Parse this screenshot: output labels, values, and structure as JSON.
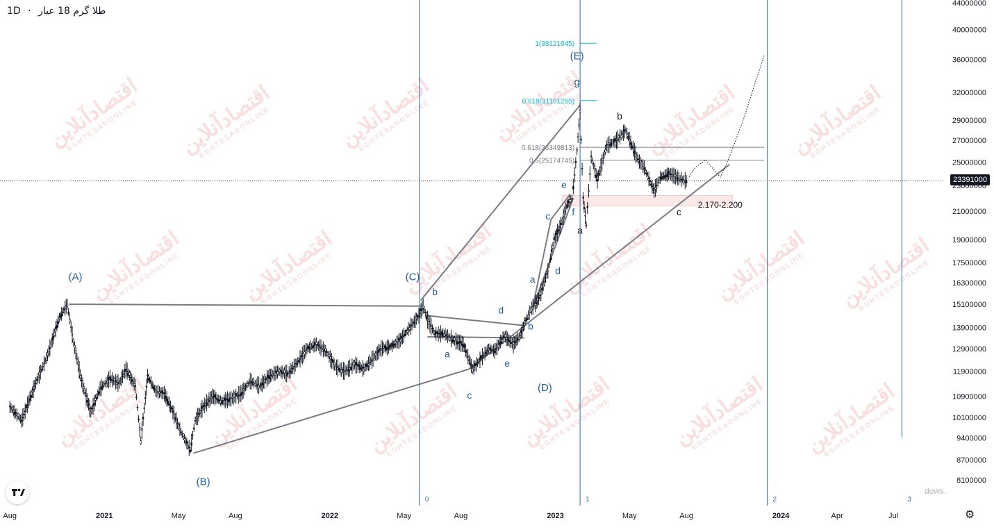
{
  "header": {
    "timeframe": "1D",
    "separator": "·",
    "symbol_title": "طلا گرم 18 عیار"
  },
  "watermark": {
    "text_fa": "اقتصادآنلاین",
    "text_en": "EGHTESADONLINE"
  },
  "chart_data": {
    "type": "candlestick",
    "title": "طلا گرم 18 عیار",
    "timeframe": "1D",
    "y_scale": "log",
    "ylim": [
      7500000,
      44000000
    ],
    "y_ticks": [
      44000000,
      40000000,
      36000000,
      32000000,
      29000000,
      27000000,
      25000000,
      23000000,
      21000000,
      19000000,
      17500000,
      16300000,
      15100000,
      13900000,
      12900000,
      11900000,
      10900000,
      10100000,
      9400000,
      8700000,
      8100000
    ],
    "y_tick_labels": [
      "44000000",
      "40000000",
      "36000000",
      "32000000",
      "29000000",
      "27000000",
      "25000000",
      "23000000",
      "21000000",
      "19000000",
      "17500000",
      "16300000",
      "15100000",
      "13900000",
      "12900000",
      "11900000",
      "10900000",
      "10100000",
      "9400000",
      "8700000",
      "8100000"
    ],
    "x_tick_labels": [
      "Aug",
      "2021",
      "May",
      "Aug",
      "2022",
      "May",
      "Aug",
      "2023",
      "May",
      "Aug",
      "2024",
      "Apr",
      "Jul"
    ],
    "x_tick_dates": [
      "2020-08-01",
      "2021-01-01",
      "2021-05-01",
      "2021-08-01",
      "2022-01-01",
      "2022-05-01",
      "2022-08-01",
      "2023-01-01",
      "2023-05-01",
      "2023-08-01",
      "2024-01-01",
      "2024-04-01",
      "2024-07-01"
    ],
    "x_range": [
      "2020-07-25",
      "2024-08-15"
    ],
    "last_price": 23391000,
    "last_price_label": "23391000",
    "price_path": [
      [
        "2020-08-01",
        10500000
      ],
      [
        "2020-08-20",
        10000000
      ],
      [
        "2020-09-10",
        11300000
      ],
      [
        "2020-10-01",
        12600000
      ],
      [
        "2020-10-20",
        14400000
      ],
      [
        "2020-11-02",
        15100000
      ],
      [
        "2020-11-12",
        13200000
      ],
      [
        "2020-11-25",
        11500000
      ],
      [
        "2020-12-10",
        10300000
      ],
      [
        "2020-12-25",
        11200000
      ],
      [
        "2021-01-10",
        11600000
      ],
      [
        "2021-01-25",
        11400000
      ],
      [
        "2021-02-05",
        12000000
      ],
      [
        "2021-02-20",
        11300000
      ],
      [
        "2021-03-01",
        9300000
      ],
      [
        "2021-03-12",
        11700000
      ],
      [
        "2021-03-25",
        11100000
      ],
      [
        "2021-04-08",
        11000000
      ],
      [
        "2021-04-20",
        10400000
      ],
      [
        "2021-05-05",
        9600000
      ],
      [
        "2021-05-20",
        9000000
      ],
      [
        "2021-05-28",
        10000000
      ],
      [
        "2021-06-10",
        10500000
      ],
      [
        "2021-06-25",
        10900000
      ],
      [
        "2021-07-10",
        10700000
      ],
      [
        "2021-07-25",
        10800000
      ],
      [
        "2021-08-10",
        11000000
      ],
      [
        "2021-08-25",
        11500000
      ],
      [
        "2021-09-10",
        11300000
      ],
      [
        "2021-09-25",
        11700000
      ],
      [
        "2021-10-10",
        11900000
      ],
      [
        "2021-10-25",
        11800000
      ],
      [
        "2021-11-10",
        12300000
      ],
      [
        "2021-11-25",
        12900000
      ],
      [
        "2021-12-10",
        13100000
      ],
      [
        "2021-12-25",
        12800000
      ],
      [
        "2022-01-10",
        12100000
      ],
      [
        "2022-01-25",
        11900000
      ],
      [
        "2022-02-10",
        12200000
      ],
      [
        "2022-02-25",
        12000000
      ],
      [
        "2022-03-10",
        12400000
      ],
      [
        "2022-03-25",
        12900000
      ],
      [
        "2022-04-10",
        13000000
      ],
      [
        "2022-04-25",
        13300000
      ],
      [
        "2022-05-10",
        13900000
      ],
      [
        "2022-05-25",
        14500000
      ],
      [
        "2022-06-01",
        15000000
      ],
      [
        "2022-06-08",
        14300000
      ],
      [
        "2022-06-20",
        13600000
      ],
      [
        "2022-07-05",
        13600000
      ],
      [
        "2022-07-20",
        13300000
      ],
      [
        "2022-08-05",
        13100000
      ],
      [
        "2022-08-20",
        12000000
      ],
      [
        "2022-09-01",
        12400000
      ],
      [
        "2022-09-15",
        12900000
      ],
      [
        "2022-09-25",
        12800000
      ],
      [
        "2022-10-10",
        13500000
      ],
      [
        "2022-10-25",
        13100000
      ],
      [
        "2022-11-05",
        13500000
      ],
      [
        "2022-11-12",
        14100000
      ],
      [
        "2022-11-22",
        14800000
      ],
      [
        "2022-12-05",
        15400000
      ],
      [
        "2022-12-20",
        17000000
      ],
      [
        "2022-12-30",
        19000000
      ],
      [
        "2023-01-10",
        20000000
      ],
      [
        "2023-01-20",
        21500000
      ],
      [
        "2023-01-28",
        22000000
      ],
      [
        "2023-02-05",
        26000000
      ],
      [
        "2023-02-10",
        30000000
      ],
      [
        "2023-02-15",
        22000000
      ],
      [
        "2023-02-20",
        20000000
      ],
      [
        "2023-02-28",
        25500000
      ],
      [
        "2023-03-10",
        23500000
      ],
      [
        "2023-03-25",
        26500000
      ],
      [
        "2023-04-10",
        27000000
      ],
      [
        "2023-04-25",
        28000000
      ],
      [
        "2023-05-05",
        26500000
      ],
      [
        "2023-05-15",
        25200000
      ],
      [
        "2023-05-25",
        24500000
      ],
      [
        "2023-06-05",
        23100000
      ],
      [
        "2023-06-10",
        22600000
      ],
      [
        "2023-06-20",
        23700000
      ],
      [
        "2023-07-05",
        24000000
      ],
      [
        "2023-07-20",
        23600000
      ],
      [
        "2023-08-01",
        23391000
      ]
    ],
    "projection_path": [
      [
        "2023-08-01",
        23391000
      ],
      [
        "2023-08-15",
        24500000
      ],
      [
        "2023-09-01",
        25200000
      ],
      [
        "2023-09-15",
        24300000
      ],
      [
        "2023-09-25",
        23700000
      ],
      [
        "2023-10-10",
        25500000
      ],
      [
        "2023-11-01",
        29000000
      ],
      [
        "2023-11-20",
        33000000
      ],
      [
        "2023-12-05",
        36500000
      ]
    ],
    "wave_labels": [
      {
        "text": "(A)",
        "date": "2020-11-15",
        "price": 16450000,
        "color": "#1f5fa9"
      },
      {
        "text": "(B)",
        "date": "2021-06-10",
        "price": 7950000,
        "color": "#1f5fa9"
      },
      {
        "text": "(C)",
        "date": "2022-05-15",
        "price": 16450000,
        "color": "#1f5fa9"
      },
      {
        "text": "(D)",
        "date": "2022-12-15",
        "price": 11100000,
        "color": "#1f5fa9"
      },
      {
        "text": "(E)",
        "date": "2023-02-05",
        "price": 36000000,
        "color": "#1f5fa9"
      },
      {
        "text": "g",
        "date": "2023-02-05",
        "price": 32800000,
        "color": "#1f5fa9"
      },
      {
        "text": "b",
        "date": "2022-06-20",
        "price": 15600000,
        "color": "#1f5fa9"
      },
      {
        "text": "a",
        "date": "2022-07-10",
        "price": 12500000,
        "color": "#1f5fa9"
      },
      {
        "text": "c",
        "date": "2022-08-15",
        "price": 10800000,
        "color": "#1f5fa9"
      },
      {
        "text": "d",
        "date": "2022-10-05",
        "price": 14600000,
        "color": "#1f5fa9"
      },
      {
        "text": "e",
        "date": "2022-10-15",
        "price": 12100000,
        "color": "#1f5fa9"
      },
      {
        "text": "b",
        "date": "2022-11-22",
        "price": 13800000,
        "color": "#1f5fa9"
      },
      {
        "text": "a",
        "date": "2022-11-25",
        "price": 16300000,
        "color": "#1f5fa9"
      },
      {
        "text": "c",
        "date": "2022-12-20",
        "price": 20400000,
        "color": "#1f5fa9"
      },
      {
        "text": "d",
        "date": "2023-01-05",
        "price": 16800000,
        "color": "#1f5fa9"
      },
      {
        "text": "e",
        "date": "2023-01-15",
        "price": 22800000,
        "color": "#1f5fa9"
      },
      {
        "text": "f",
        "date": "2023-01-30",
        "price": 20700000,
        "color": "#1f5fa9"
      },
      {
        "text": "a",
        "date": "2023-02-10",
        "price": 19400000,
        "color": "#131722"
      },
      {
        "text": "b",
        "date": "2023-04-15",
        "price": 29100000,
        "color": "#131722"
      },
      {
        "text": "c",
        "date": "2023-07-20",
        "price": 20700000,
        "color": "#131722"
      }
    ],
    "fib_levels": [
      {
        "label": "1(38121945)",
        "price": 38121945,
        "color": "#00bcd4"
      },
      {
        "label": "0.618(31101255)",
        "price": 31101255,
        "color": "#00bcd4"
      },
      {
        "label": "0.618(26349813)",
        "price": 26349813,
        "color": "#787b86"
      },
      {
        "label": "0.5(25174745)",
        "price": 25174745,
        "color": "#787b86"
      }
    ],
    "zone": {
      "label": "2.170-2.200",
      "low": 21700000,
      "high": 22000000
    },
    "vertical_markers": [
      {
        "label": "0",
        "date": "2022-05-26"
      },
      {
        "label": "1",
        "date": "2023-02-10"
      },
      {
        "label": "2",
        "date": "2023-12-10"
      },
      {
        "label": "3",
        "date": "2024-07-15"
      }
    ],
    "trendlines": [
      {
        "from": [
          "2020-11-05",
          15100000
        ],
        "to": [
          "2022-05-28",
          15000000
        ]
      },
      {
        "from": [
          "2021-05-25",
          8900000
        ],
        "to": [
          "2022-08-15",
          12000000
        ]
      },
      {
        "from": [
          "2022-05-28",
          15300000
        ],
        "to": [
          "2023-02-10",
          30600000
        ]
      },
      {
        "from": [
          "2022-06-08",
          14500000
        ],
        "to": [
          "2022-11-12",
          14000000
        ]
      },
      {
        "from": [
          "2022-06-08",
          13450000
        ],
        "to": [
          "2022-11-12",
          13400000
        ]
      },
      {
        "from": [
          "2022-08-15",
          12000000
        ],
        "to": [
          "2023-10-10",
          24800000
        ]
      },
      {
        "from": [
          "2022-11-25",
          14900000
        ],
        "to": [
          "2022-12-25",
          20400000
        ]
      },
      {
        "from": [
          "2022-11-25",
          14900000
        ],
        "to": [
          "2023-01-30",
          22000000
        ]
      },
      {
        "from": [
          "2022-12-25",
          20400000
        ],
        "to": [
          "2023-01-25",
          22300000
        ]
      }
    ]
  },
  "colors": {
    "wave_blue": "#1f5fa9",
    "marker_line": "#2a6cb8",
    "trendline": "#787b86",
    "candle": "#131722",
    "zone_fill": "#fde8e8",
    "watermark": "#f2b8b8"
  },
  "branding": {
    "partial_text": "dows."
  },
  "settings_icon": "gear-icon"
}
